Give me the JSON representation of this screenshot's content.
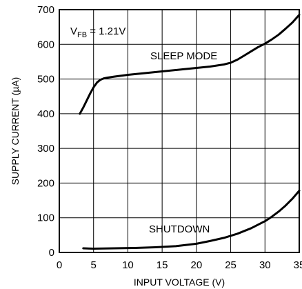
{
  "chart_data": {
    "type": "line",
    "xlabel": "INPUT VOLTAGE (V)",
    "ylabel": "SUPPLY CURRENT (µA)",
    "xlim": [
      0,
      35
    ],
    "ylim": [
      0,
      700
    ],
    "x_ticks": [
      "0",
      "5",
      "10",
      "15",
      "20",
      "25",
      "30",
      "35"
    ],
    "y_ticks": [
      "0",
      "100",
      "200",
      "300",
      "400",
      "500",
      "600",
      "700"
    ],
    "grid": true,
    "legend": "none",
    "annotations": {
      "vfb_main": "V",
      "vfb_sub": "FB",
      "vfb_value": " = 1.21V"
    },
    "series": [
      {
        "name": "SLEEP MODE",
        "x": [
          3.0,
          3.5,
          4.0,
          4.5,
          5.0,
          5.5,
          6.0,
          6.5,
          7.0,
          8.0,
          10.0,
          12.0,
          15.0,
          18.0,
          20.0,
          22.0,
          24.0,
          25.0,
          26.0,
          27.0,
          28.0,
          29.0,
          30.0,
          31.0,
          32.0,
          33.0,
          34.0,
          35.0
        ],
        "y": [
          400,
          418,
          438,
          458,
          476,
          490,
          498,
          502,
          504,
          507,
          512,
          516,
          522,
          528,
          532,
          536,
          542,
          547,
          556,
          568,
          580,
          592,
          602,
          614,
          628,
          645,
          663,
          685
        ]
      },
      {
        "name": "SHUTDOWN",
        "x": [
          3.5,
          5.0,
          8.0,
          11.0,
          14.0,
          17.0,
          20.0,
          22.0,
          24.0,
          26.0,
          28.0,
          30.0,
          31.0,
          32.0,
          33.0,
          34.0,
          35.0
        ],
        "y": [
          12,
          11,
          12,
          13,
          15,
          18,
          25,
          33,
          42,
          54,
          70,
          90,
          103,
          118,
          135,
          155,
          178
        ]
      }
    ]
  }
}
